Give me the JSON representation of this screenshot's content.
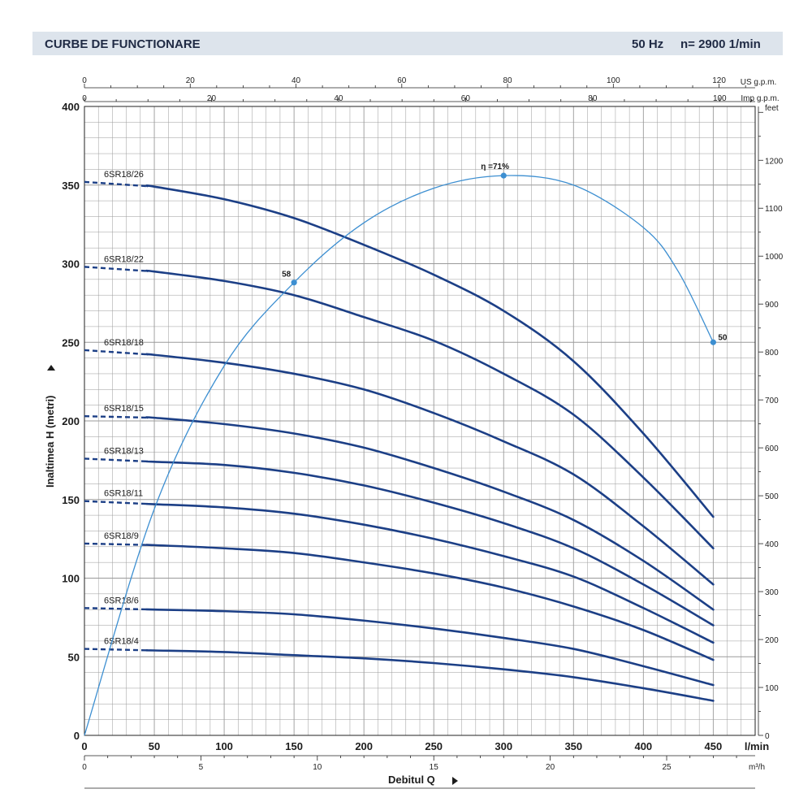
{
  "header": {
    "title": "CURBE DE FUNCTIONARE",
    "frequency": "50 Hz",
    "speed": "n= 2900  1/min"
  },
  "colors": {
    "curve": "#1c3f86",
    "efficiency": "#3d8fd1",
    "grid": "#9a9a9a",
    "header_bg": "#dde4ec"
  },
  "chart_data": {
    "type": "line",
    "title": "CURBE DE FUNCTIONARE",
    "xlabel": "Debitul Q",
    "ylabel": "Inaltimea H (metri)",
    "xlim": [
      0,
      480
    ],
    "ylim": [
      0,
      400
    ],
    "x_unit": "l/min",
    "x_ticks": [
      0,
      50,
      100,
      150,
      200,
      250,
      300,
      350,
      400,
      450
    ],
    "y_ticks": [
      0,
      50,
      100,
      150,
      200,
      250,
      300,
      350,
      400
    ],
    "secondary_axes": {
      "m3h": {
        "unit": "m³/h",
        "ticks": [
          0,
          5,
          10,
          15,
          20,
          25
        ]
      },
      "us_gpm": {
        "unit": "US g.p.m.",
        "ticks": [
          0,
          20,
          40,
          60,
          80,
          100,
          120
        ]
      },
      "imp_gpm": {
        "unit": "Imp g.p.m.",
        "ticks": [
          0,
          20,
          40,
          60,
          80,
          100
        ]
      },
      "feet": {
        "unit": "feet",
        "ticks": [
          0,
          100,
          200,
          300,
          400,
          500,
          600,
          700,
          800,
          900,
          1000,
          1100,
          1200
        ]
      }
    },
    "dashed_until_x": 45,
    "series": [
      {
        "name": "6SR18/26",
        "x": [
          0,
          50,
          100,
          150,
          200,
          250,
          300,
          350,
          400,
          450
        ],
        "values": [
          352,
          349,
          341,
          329,
          312,
          293,
          270,
          238,
          192,
          139
        ]
      },
      {
        "name": "6SR18/22",
        "x": [
          0,
          50,
          100,
          150,
          200,
          250,
          300,
          350,
          400,
          450
        ],
        "values": [
          298,
          295,
          289,
          280,
          266,
          251,
          230,
          204,
          164,
          119
        ]
      },
      {
        "name": "6SR18/18",
        "x": [
          0,
          50,
          100,
          150,
          200,
          250,
          300,
          350,
          400,
          450
        ],
        "values": [
          245,
          242,
          237,
          230,
          220,
          205,
          187,
          166,
          133,
          96
        ]
      },
      {
        "name": "6SR18/15",
        "x": [
          0,
          50,
          100,
          150,
          200,
          250,
          300,
          350,
          400,
          450
        ],
        "values": [
          203,
          202,
          198,
          192,
          183,
          170,
          155,
          137,
          111,
          80
        ]
      },
      {
        "name": "6SR18/13",
        "x": [
          0,
          50,
          100,
          150,
          200,
          250,
          300,
          350,
          400,
          450
        ],
        "values": [
          176,
          174,
          172,
          167,
          159,
          148,
          135,
          119,
          96,
          70
        ]
      },
      {
        "name": "6SR18/11",
        "x": [
          0,
          50,
          100,
          150,
          200,
          250,
          300,
          350,
          400,
          450
        ],
        "values": [
          149,
          147,
          145,
          141,
          134,
          125,
          114,
          101,
          81,
          59
        ]
      },
      {
        "name": "6SR18/9",
        "x": [
          0,
          50,
          100,
          150,
          200,
          250,
          300,
          350,
          400,
          450
        ],
        "values": [
          122,
          121,
          119,
          116,
          110,
          103,
          94,
          82,
          67,
          48
        ]
      },
      {
        "name": "6SR18/6",
        "x": [
          0,
          50,
          100,
          150,
          200,
          250,
          300,
          350,
          400,
          450
        ],
        "values": [
          81,
          80,
          79,
          77,
          73,
          68,
          62,
          55,
          44,
          32
        ]
      },
      {
        "name": "6SR18/4",
        "x": [
          0,
          50,
          100,
          150,
          200,
          250,
          300,
          350,
          400,
          450
        ],
        "values": [
          55,
          54,
          53,
          51,
          49,
          46,
          42,
          37,
          30,
          22
        ]
      }
    ],
    "efficiency_curve": {
      "name": "efficiency",
      "x": [
        0,
        50,
        100,
        150,
        200,
        250,
        300,
        350,
        400,
        425,
        450
      ],
      "values": [
        0,
        144,
        235,
        288,
        326,
        348,
        356,
        350,
        323,
        295,
        250
      ]
    },
    "efficiency_points": [
      {
        "label": "58",
        "x": 150,
        "y": 288
      },
      {
        "label": "η =71%",
        "x": 300,
        "y": 356
      },
      {
        "label": "50",
        "x": 450,
        "y": 250
      }
    ]
  }
}
